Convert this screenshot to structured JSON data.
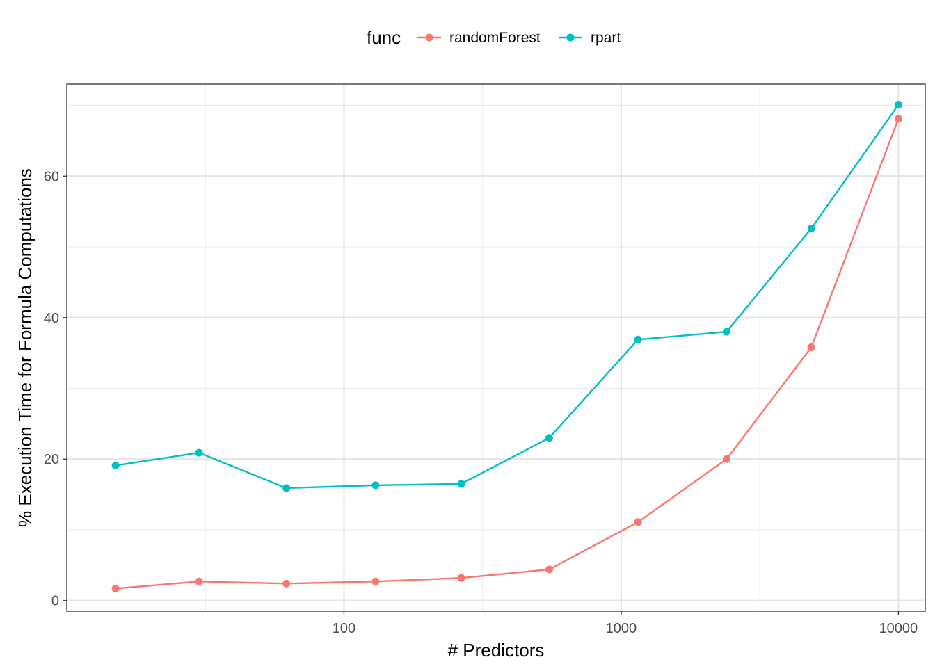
{
  "chart_data": {
    "type": "line",
    "xlabel": "# Predictors",
    "ylabel": "% Execution Time for Formula Computations",
    "x_scale": "log10",
    "xlim": [
      10,
      12500
    ],
    "ylim": [
      -1.5,
      73
    ],
    "x_ticks": [
      100,
      1000,
      10000
    ],
    "x_tick_labels": [
      "100",
      "1000",
      "10000"
    ],
    "y_ticks": [
      0,
      20,
      40,
      60
    ],
    "y_tick_labels": [
      "0",
      "20",
      "40",
      "60"
    ],
    "grid": true,
    "legend": {
      "title": "func",
      "position": "top",
      "entries": [
        "randomForest",
        "rpart"
      ]
    },
    "series": [
      {
        "name": "randomForest",
        "color": "#F8766D",
        "x": [
          15,
          30,
          62,
          130,
          265,
          550,
          1150,
          2400,
          4850,
          10000
        ],
        "y": [
          1.7,
          2.7,
          2.4,
          2.7,
          3.2,
          4.4,
          11.1,
          20.0,
          35.8,
          68.1
        ]
      },
      {
        "name": "rpart",
        "color": "#00BFC4",
        "x": [
          15,
          30,
          62,
          130,
          265,
          550,
          1150,
          2400,
          4850,
          10000
        ],
        "y": [
          19.1,
          20.9,
          15.9,
          16.3,
          16.5,
          23.0,
          36.9,
          38.0,
          52.6,
          70.1
        ]
      }
    ]
  }
}
